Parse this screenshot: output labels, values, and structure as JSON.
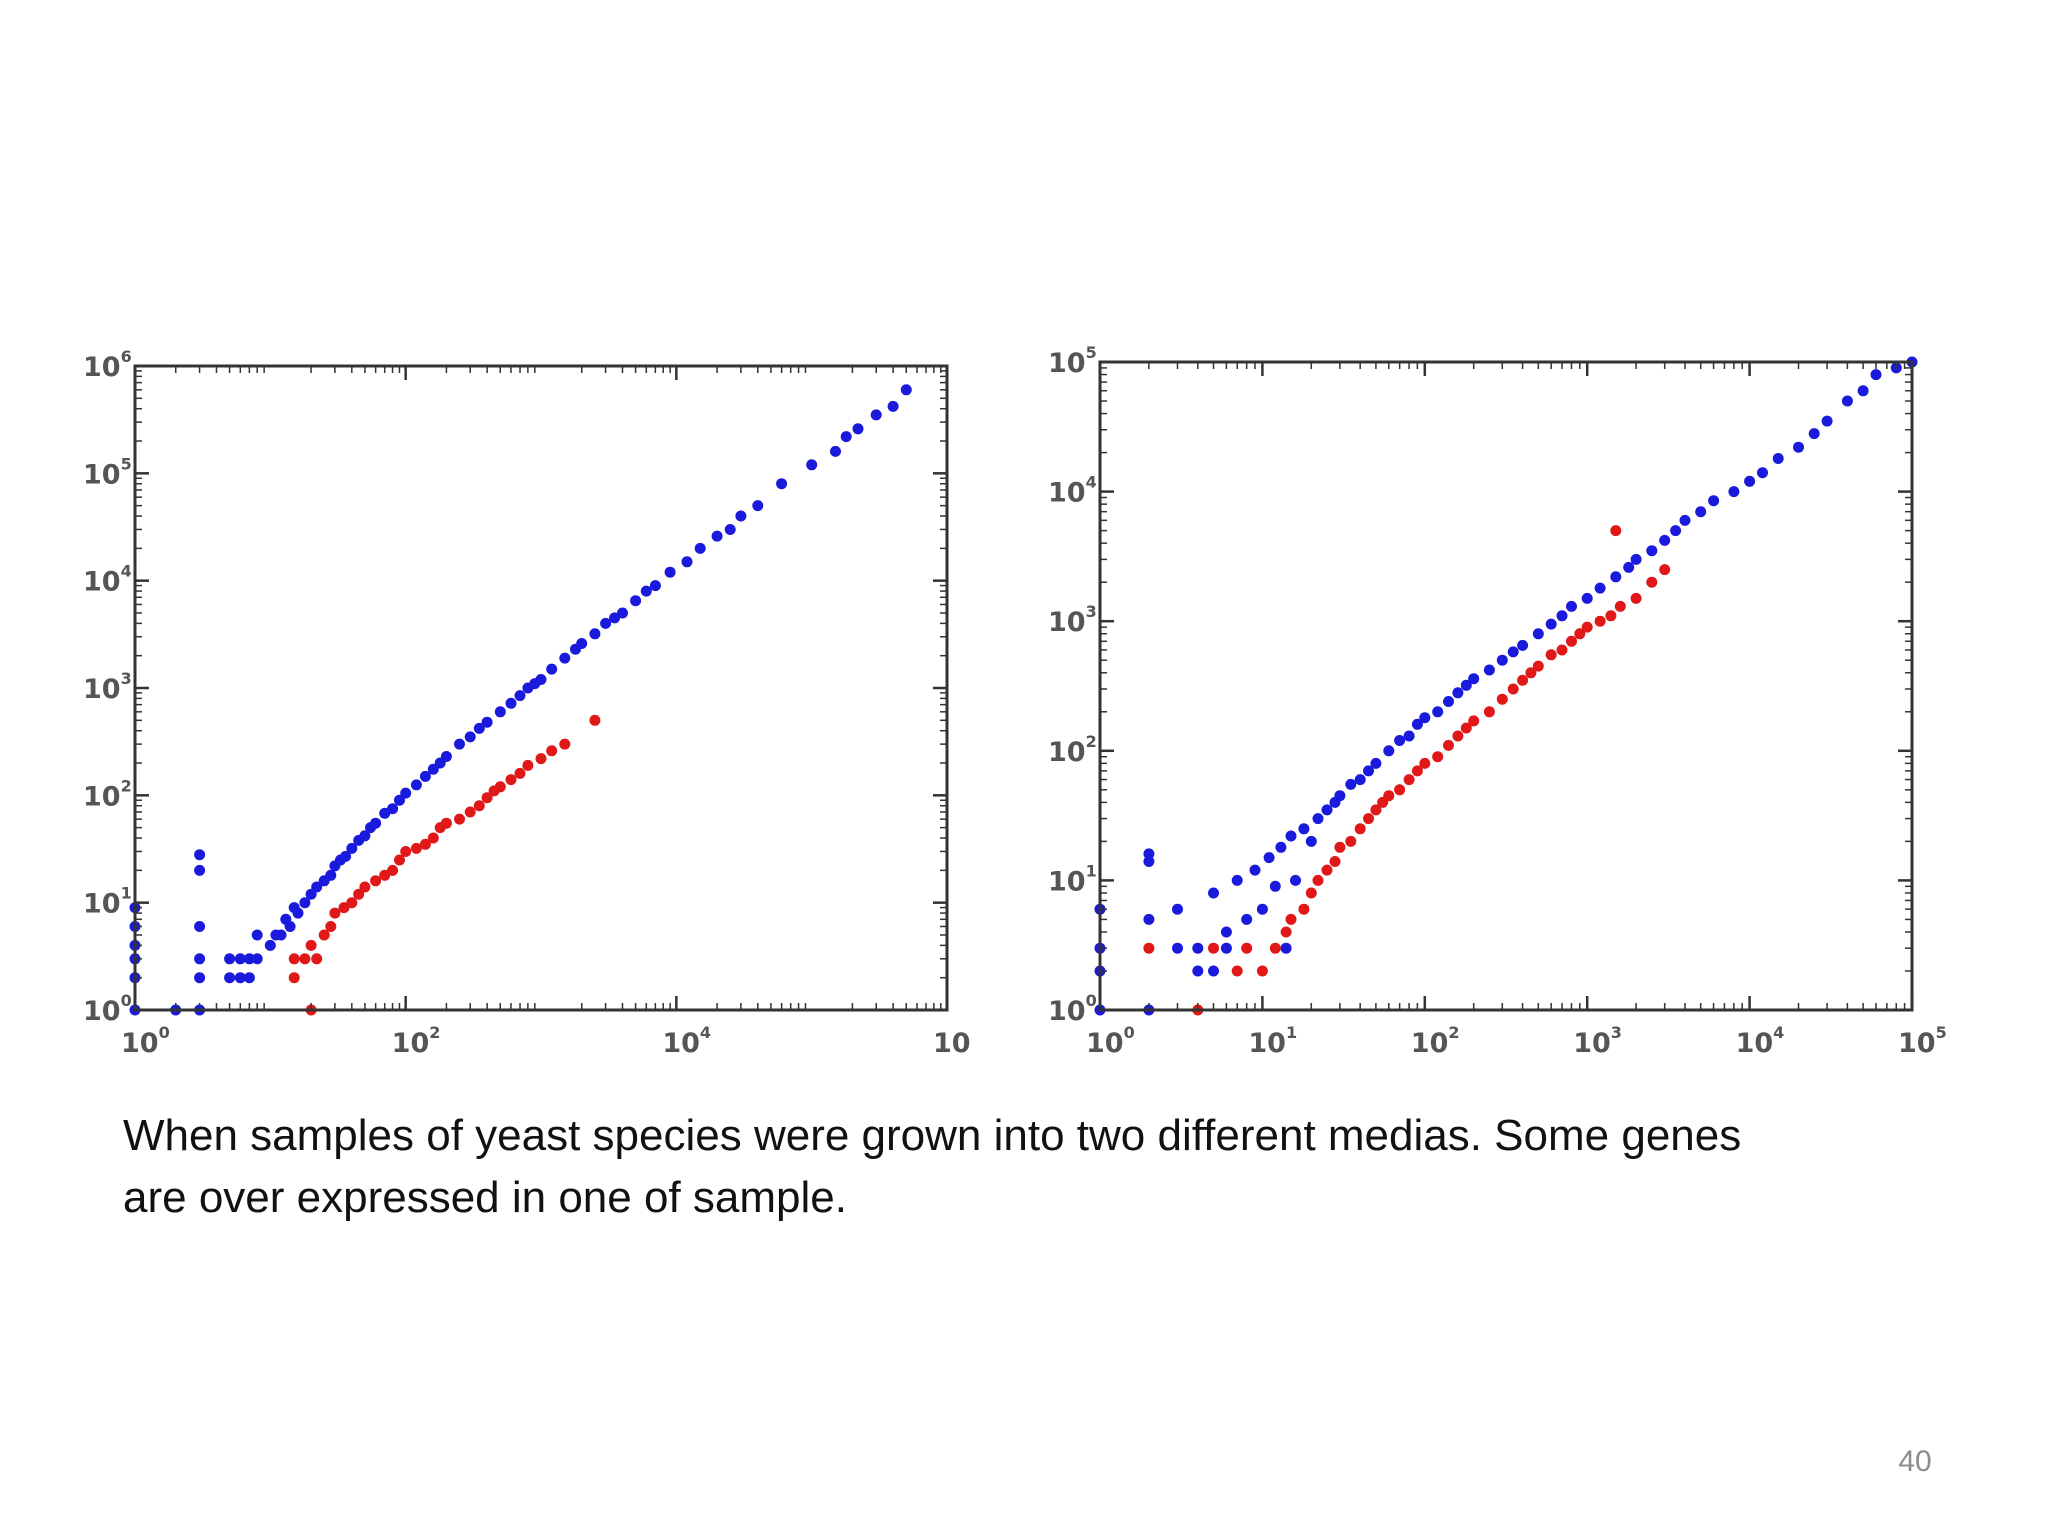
{
  "caption": {
    "line1": "When samples of yeast species  were grown into two different medias. Some genes",
    "line2": "are over expressed in one of sample."
  },
  "page_number": "40",
  "colors": {
    "series_blue": "#1a1adc",
    "series_red": "#e01818",
    "axes": "#333333"
  },
  "chart_data": [
    {
      "type": "scatter",
      "xscale": "log",
      "yscale": "log",
      "xlim": [
        1,
        1000000
      ],
      "ylim": [
        1,
        1000000
      ],
      "x_ticks": [
        {
          "value": 1,
          "base": "10",
          "exp": "0"
        },
        {
          "value": 100,
          "base": "10",
          "exp": "2"
        },
        {
          "value": 10000,
          "base": "10",
          "exp": "4"
        },
        {
          "value": 1000000,
          "base": "10",
          "exp": ""
        }
      ],
      "y_ticks": [
        {
          "value": 1,
          "base": "10",
          "exp": "0"
        },
        {
          "value": 10,
          "base": "10",
          "exp": "1"
        },
        {
          "value": 100,
          "base": "10",
          "exp": "2"
        },
        {
          "value": 1000,
          "base": "10",
          "exp": "3"
        },
        {
          "value": 10000,
          "base": "10",
          "exp": "4"
        },
        {
          "value": 100000,
          "base": "10",
          "exp": "5"
        },
        {
          "value": 1000000,
          "base": "10",
          "exp": "6"
        }
      ],
      "series": [
        {
          "color": "blue",
          "points": [
            [
              1,
              1
            ],
            [
              1,
              2
            ],
            [
              1,
              3
            ],
            [
              1,
              4
            ],
            [
              1,
              6
            ],
            [
              1,
              9
            ],
            [
              2,
              1
            ],
            [
              3,
              1
            ],
            [
              3,
              2
            ],
            [
              3,
              3
            ],
            [
              3,
              6
            ],
            [
              3,
              20
            ],
            [
              3,
              28
            ],
            [
              5,
              2
            ],
            [
              5,
              3
            ],
            [
              6,
              2
            ],
            [
              6,
              3
            ],
            [
              7,
              2
            ],
            [
              7,
              3
            ],
            [
              8,
              3
            ],
            [
              8,
              5
            ],
            [
              10,
              4
            ],
            [
              11,
              5
            ],
            [
              12,
              5
            ],
            [
              13,
              7
            ],
            [
              14,
              6
            ],
            [
              15,
              9
            ],
            [
              16,
              8
            ],
            [
              18,
              10
            ],
            [
              20,
              12
            ],
            [
              22,
              14
            ],
            [
              25,
              16
            ],
            [
              28,
              18
            ],
            [
              30,
              22
            ],
            [
              33,
              25
            ],
            [
              36,
              27
            ],
            [
              40,
              32
            ],
            [
              45,
              38
            ],
            [
              50,
              42
            ],
            [
              55,
              50
            ],
            [
              60,
              55
            ],
            [
              70,
              68
            ],
            [
              80,
              75
            ],
            [
              90,
              90
            ],
            [
              100,
              105
            ],
            [
              120,
              125
            ],
            [
              140,
              150
            ],
            [
              160,
              175
            ],
            [
              180,
              200
            ],
            [
              200,
              230
            ],
            [
              250,
              300
            ],
            [
              300,
              350
            ],
            [
              350,
              420
            ],
            [
              400,
              480
            ],
            [
              500,
              600
            ],
            [
              600,
              720
            ],
            [
              700,
              850
            ],
            [
              800,
              1000
            ],
            [
              900,
              1100
            ],
            [
              1000,
              1200
            ],
            [
              1200,
              1500
            ],
            [
              1500,
              1900
            ],
            [
              1800,
              2300
            ],
            [
              2000,
              2600
            ],
            [
              2500,
              3200
            ],
            [
              3000,
              4000
            ],
            [
              3500,
              4500
            ],
            [
              4000,
              5000
            ],
            [
              5000,
              6500
            ],
            [
              6000,
              8000
            ],
            [
              7000,
              9000
            ],
            [
              9000,
              12000
            ],
            [
              12000,
              15000
            ],
            [
              15000,
              20000
            ],
            [
              20000,
              26000
            ],
            [
              25000,
              30000
            ],
            [
              30000,
              40000
            ],
            [
              40000,
              50000
            ],
            [
              60000,
              80000
            ],
            [
              100000,
              120000
            ],
            [
              150000,
              160000
            ],
            [
              180000,
              220000
            ],
            [
              220000,
              260000
            ],
            [
              300000,
              350000
            ],
            [
              400000,
              420000
            ],
            [
              500000,
              600000
            ]
          ]
        },
        {
          "color": "red",
          "points": [
            [
              20,
              1
            ],
            [
              15,
              2
            ],
            [
              15,
              3
            ],
            [
              18,
              3
            ],
            [
              20,
              4
            ],
            [
              22,
              3
            ],
            [
              25,
              5
            ],
            [
              28,
              6
            ],
            [
              30,
              8
            ],
            [
              35,
              9
            ],
            [
              40,
              10
            ],
            [
              45,
              12
            ],
            [
              50,
              14
            ],
            [
              60,
              16
            ],
            [
              70,
              18
            ],
            [
              80,
              20
            ],
            [
              90,
              25
            ],
            [
              100,
              30
            ],
            [
              120,
              32
            ],
            [
              140,
              35
            ],
            [
              160,
              40
            ],
            [
              180,
              50
            ],
            [
              200,
              55
            ],
            [
              250,
              60
            ],
            [
              300,
              70
            ],
            [
              350,
              80
            ],
            [
              400,
              95
            ],
            [
              450,
              110
            ],
            [
              500,
              120
            ],
            [
              600,
              140
            ],
            [
              700,
              160
            ],
            [
              800,
              190
            ],
            [
              1000,
              220
            ],
            [
              1200,
              260
            ],
            [
              1500,
              300
            ],
            [
              2500,
              500
            ]
          ]
        }
      ]
    },
    {
      "type": "scatter",
      "xscale": "log",
      "yscale": "log",
      "xlim": [
        1,
        100000
      ],
      "ylim": [
        1,
        100000
      ],
      "x_ticks": [
        {
          "value": 1,
          "base": "10",
          "exp": "0"
        },
        {
          "value": 10,
          "base": "10",
          "exp": "1"
        },
        {
          "value": 100,
          "base": "10",
          "exp": "2"
        },
        {
          "value": 1000,
          "base": "10",
          "exp": "3"
        },
        {
          "value": 10000,
          "base": "10",
          "exp": "4"
        },
        {
          "value": 100000,
          "base": "10",
          "exp": "5"
        }
      ],
      "y_ticks": [
        {
          "value": 1,
          "base": "10",
          "exp": "0"
        },
        {
          "value": 10,
          "base": "10",
          "exp": "1"
        },
        {
          "value": 100,
          "base": "10",
          "exp": "2"
        },
        {
          "value": 1000,
          "base": "10",
          "exp": "3"
        },
        {
          "value": 10000,
          "base": "10",
          "exp": "4"
        },
        {
          "value": 100000,
          "base": "10",
          "exp": "5"
        }
      ],
      "series": [
        {
          "color": "blue",
          "points": [
            [
              1,
              1
            ],
            [
              1,
              2
            ],
            [
              1,
              3
            ],
            [
              1,
              6
            ],
            [
              2,
              1
            ],
            [
              2,
              5
            ],
            [
              2,
              14
            ],
            [
              2,
              16
            ],
            [
              3,
              6
            ],
            [
              3,
              3
            ],
            [
              4,
              2
            ],
            [
              4,
              3
            ],
            [
              5,
              2
            ],
            [
              5,
              8
            ],
            [
              6,
              4
            ],
            [
              6,
              3
            ],
            [
              7,
              10
            ],
            [
              8,
              5
            ],
            [
              9,
              12
            ],
            [
              10,
              6
            ],
            [
              11,
              15
            ],
            [
              12,
              9
            ],
            [
              13,
              18
            ],
            [
              14,
              3
            ],
            [
              15,
              22
            ],
            [
              16,
              10
            ],
            [
              18,
              25
            ],
            [
              20,
              20
            ],
            [
              22,
              30
            ],
            [
              25,
              35
            ],
            [
              28,
              40
            ],
            [
              30,
              45
            ],
            [
              35,
              55
            ],
            [
              40,
              60
            ],
            [
              45,
              70
            ],
            [
              50,
              80
            ],
            [
              60,
              100
            ],
            [
              70,
              120
            ],
            [
              80,
              130
            ],
            [
              90,
              160
            ],
            [
              100,
              180
            ],
            [
              120,
              200
            ],
            [
              140,
              240
            ],
            [
              160,
              280
            ],
            [
              180,
              320
            ],
            [
              200,
              360
            ],
            [
              250,
              420
            ],
            [
              300,
              500
            ],
            [
              350,
              580
            ],
            [
              400,
              650
            ],
            [
              500,
              800
            ],
            [
              600,
              950
            ],
            [
              700,
              1100
            ],
            [
              800,
              1300
            ],
            [
              1000,
              1500
            ],
            [
              1200,
              1800
            ],
            [
              1500,
              2200
            ],
            [
              1800,
              2600
            ],
            [
              2000,
              3000
            ],
            [
              2500,
              3500
            ],
            [
              3000,
              4200
            ],
            [
              3500,
              5000
            ],
            [
              4000,
              6000
            ],
            [
              5000,
              7000
            ],
            [
              6000,
              8500
            ],
            [
              8000,
              10000
            ],
            [
              10000,
              12000
            ],
            [
              12000,
              14000
            ],
            [
              15000,
              18000
            ],
            [
              20000,
              22000
            ],
            [
              25000,
              28000
            ],
            [
              30000,
              35000
            ],
            [
              40000,
              50000
            ],
            [
              50000,
              60000
            ],
            [
              60000,
              80000
            ],
            [
              80000,
              90000
            ],
            [
              100000,
              100000
            ]
          ]
        },
        {
          "color": "red",
          "points": [
            [
              2,
              3
            ],
            [
              4,
              1
            ],
            [
              5,
              3
            ],
            [
              7,
              2
            ],
            [
              8,
              3
            ],
            [
              10,
              2
            ],
            [
              12,
              3
            ],
            [
              14,
              4
            ],
            [
              15,
              5
            ],
            [
              18,
              6
            ],
            [
              20,
              8
            ],
            [
              22,
              10
            ],
            [
              25,
              12
            ],
            [
              28,
              14
            ],
            [
              30,
              18
            ],
            [
              35,
              20
            ],
            [
              40,
              25
            ],
            [
              45,
              30
            ],
            [
              50,
              35
            ],
            [
              55,
              40
            ],
            [
              60,
              45
            ],
            [
              70,
              50
            ],
            [
              80,
              60
            ],
            [
              90,
              70
            ],
            [
              100,
              80
            ],
            [
              120,
              90
            ],
            [
              140,
              110
            ],
            [
              160,
              130
            ],
            [
              180,
              150
            ],
            [
              200,
              170
            ],
            [
              250,
              200
            ],
            [
              300,
              250
            ],
            [
              350,
              300
            ],
            [
              400,
              350
            ],
            [
              450,
              400
            ],
            [
              500,
              450
            ],
            [
              600,
              550
            ],
            [
              700,
              600
            ],
            [
              800,
              700
            ],
            [
              900,
              800
            ],
            [
              1000,
              900
            ],
            [
              1200,
              1000
            ],
            [
              1400,
              1100
            ],
            [
              1600,
              1300
            ],
            [
              2000,
              1500
            ],
            [
              2500,
              2000
            ],
            [
              3000,
              2500
            ],
            [
              1500,
              5000
            ]
          ]
        }
      ]
    }
  ]
}
